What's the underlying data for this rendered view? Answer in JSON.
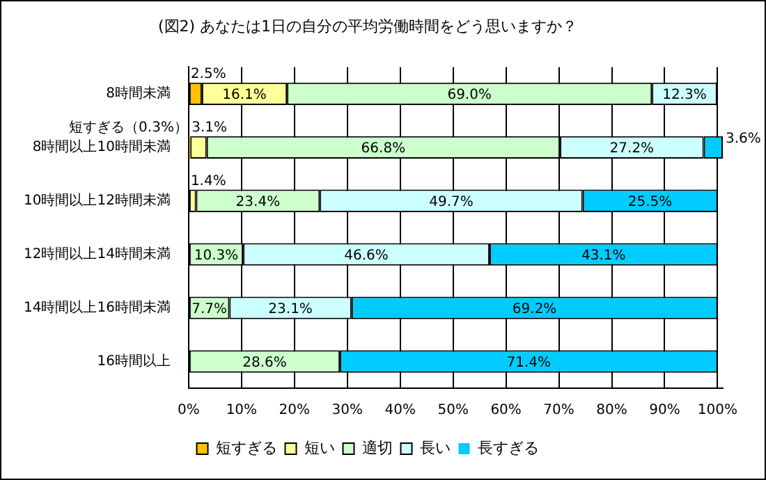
{
  "chart_data": {
    "type": "bar",
    "orientation": "horizontal",
    "stacked": true,
    "title": "(図2) あなたは1日の自分の平均労働時間をどう思いますか？",
    "categories": [
      "8時間未満",
      "8時間以上10時間未満",
      "10時間以上12時間未満",
      "12時間以上14時間未満",
      "14時間以上16時間未満",
      "16時間以上"
    ],
    "series": [
      {
        "name": "短すぎる",
        "color": "#ffc000",
        "values": [
          2.5,
          0.3,
          null,
          null,
          null,
          null
        ],
        "value_labels": [
          "2.5%",
          "短すぎる（0.3%）",
          null,
          null,
          null,
          null
        ]
      },
      {
        "name": "短い",
        "color": "#ffff99",
        "values": [
          16.1,
          3.1,
          1.4,
          null,
          null,
          null
        ],
        "value_labels": [
          "16.1%",
          "3.1%",
          "1.4%",
          null,
          null,
          null
        ]
      },
      {
        "name": "適切",
        "color": "#ccffcc",
        "values": [
          69.0,
          66.8,
          23.4,
          10.3,
          7.7,
          28.6
        ],
        "value_labels": [
          "69.0%",
          "66.8%",
          "23.4%",
          "10.3%",
          "7.7%",
          "28.6%"
        ]
      },
      {
        "name": "長い",
        "color": "#ccffff",
        "values": [
          12.3,
          27.2,
          49.7,
          46.6,
          23.1,
          null
        ],
        "value_labels": [
          "12.3%",
          "27.2%",
          "49.7%",
          "46.6%",
          "23.1%",
          null
        ]
      },
      {
        "name": "長すぎる",
        "color": "#00ccff",
        "values": [
          null,
          3.6,
          25.5,
          43.1,
          69.2,
          71.4
        ],
        "value_labels": [
          null,
          "3.6%",
          "25.5%",
          "43.1%",
          "69.2%",
          "71.4%"
        ]
      }
    ],
    "xlim": [
      0,
      101
    ],
    "xticks": [
      {
        "value": 0,
        "label": "0%"
      },
      {
        "value": 10,
        "label": "10%"
      },
      {
        "value": 20,
        "label": "20%"
      },
      {
        "value": 30,
        "label": "30%"
      },
      {
        "value": 40,
        "label": "40%"
      },
      {
        "value": 50,
        "label": "50%"
      },
      {
        "value": 60,
        "label": "60%"
      },
      {
        "value": 70,
        "label": "70%"
      },
      {
        "value": 80,
        "label": "80%"
      },
      {
        "value": 90,
        "label": "90%"
      },
      {
        "value": 100,
        "label": "100%"
      }
    ],
    "grid": "x",
    "legend": "bottom"
  }
}
